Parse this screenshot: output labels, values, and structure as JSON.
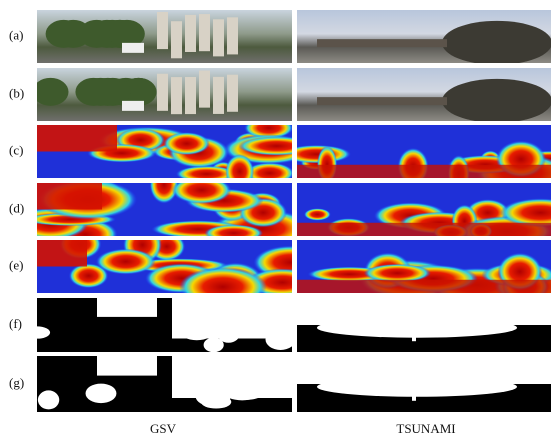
{
  "figure": {
    "row_labels": [
      "(a)",
      "(b)",
      "(c)",
      "(d)",
      "(e)",
      "(f)",
      "(g)"
    ],
    "column_labels": [
      "GSV",
      "TSUNAMI"
    ]
  }
}
